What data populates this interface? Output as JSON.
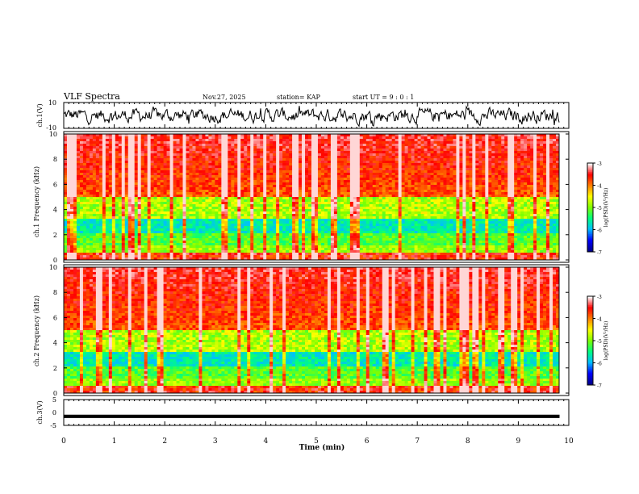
{
  "header": {
    "title": "VLF Spectra",
    "date": "Nov.27, 2025",
    "station": "station= KAP",
    "start": "start  UT  =   9 : 0  : 1"
  },
  "colors": {
    "trace": "#000000",
    "axis": "#000000",
    "spectrogram_palette": [
      "#00008b",
      "#0000ff",
      "#00bfff",
      "#00ff7f",
      "#7fff00",
      "#ffff00",
      "#ff7f00",
      "#ff0000",
      "#ffffff"
    ]
  },
  "chart_data": [
    {
      "type": "line",
      "name": "ch1-waveform",
      "ylabel": "ch.1(V)",
      "ylim": [
        -10,
        10
      ],
      "yticks": [
        "10",
        "-10"
      ],
      "xlim": [
        0,
        10
      ],
      "trace_center": 0,
      "trace_amplitude": 8
    },
    {
      "type": "heatmap",
      "name": "ch1-spectrogram",
      "ylabel": "ch.1 Frequency (kHz)",
      "ylim": [
        0,
        10
      ],
      "yticks": [
        "0",
        "2",
        "4",
        "6",
        "8",
        "10"
      ],
      "xlim": [
        0,
        10
      ],
      "colorbar": {
        "label": "log(PSD)(V²/Hz)",
        "range": [
          -7,
          -3
        ],
        "ticks": [
          "-3",
          "-4",
          "-5",
          "-6",
          "-7"
        ]
      }
    },
    {
      "type": "heatmap",
      "name": "ch2-spectrogram",
      "ylabel": "ch.2 Frequency (kHz)",
      "ylim": [
        0,
        10
      ],
      "yticks": [
        "0",
        "2",
        "4",
        "6",
        "8",
        "10"
      ],
      "xlim": [
        0,
        10
      ],
      "colorbar": {
        "label": "log(PSD)(V²/Hz)",
        "range": [
          -7,
          -3
        ],
        "ticks": [
          "-3",
          "-4",
          "-5",
          "-6",
          "-7"
        ]
      }
    },
    {
      "type": "line",
      "name": "ch3-waveform",
      "ylabel": "ch.3(V)",
      "ylim": [
        -5,
        5
      ],
      "yticks": [
        "5",
        "0",
        "-5"
      ],
      "xlim": [
        0,
        10
      ],
      "trace_center": -1.5,
      "trace_amplitude": 0.5
    }
  ],
  "xaxis": {
    "label": "Time  (min)",
    "ticks": [
      "0",
      "1",
      "2",
      "3",
      "4",
      "5",
      "6",
      "7",
      "8",
      "9",
      "10"
    ]
  }
}
